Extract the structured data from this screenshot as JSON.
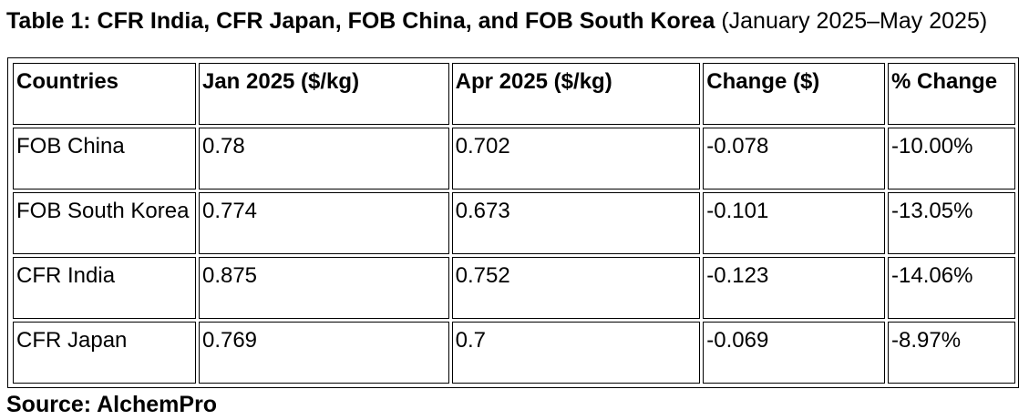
{
  "title": {
    "bold": "Table 1: CFR India, CFR Japan, FOB China, and FOB South Korea",
    "normal": "(January 2025–May 2025)"
  },
  "table": {
    "headers": [
      "Countries",
      "Jan 2025 ($/kg)",
      "Apr 2025 ($/kg)",
      "Change ($)",
      "% Change"
    ],
    "rows": [
      [
        "FOB China",
        "0.78",
        "0.702",
        "-0.078",
        "-10.00%"
      ],
      [
        "FOB South Korea",
        "0.774",
        "0.673",
        "-0.101",
        "-13.05%"
      ],
      [
        "CFR India",
        "0.875",
        "0.752",
        "-0.123",
        "-14.06%"
      ],
      [
        "CFR Japan",
        "0.769",
        "0.7",
        "-0.069",
        "-8.97%"
      ]
    ]
  },
  "source": "Source: AlchemPro"
}
